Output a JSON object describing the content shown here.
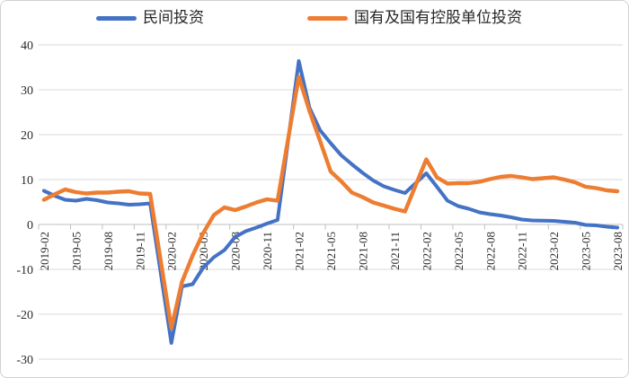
{
  "legend": [
    {
      "label": "民间投资",
      "color": "#4472C4"
    },
    {
      "label": "国有及国有控股单位投资",
      "color": "#ED7D31"
    }
  ],
  "chart_data": {
    "type": "line",
    "title": "",
    "xlabel": "",
    "ylabel": "",
    "ylim": [
      -30,
      40
    ],
    "y_ticks": [
      40,
      30,
      20,
      10,
      0,
      -10,
      -20,
      -30
    ],
    "grid": true,
    "legend_position": "top",
    "x_tick_labels": [
      "2019-02",
      "2019-05",
      "2019-08",
      "2019-11",
      "2020-02",
      "2020-05",
      "2020-08",
      "2020-11",
      "2021-02",
      "2021-05",
      "2021-08",
      "2021-11",
      "2022-02",
      "2022-05",
      "2022-08",
      "2022-11",
      "2023-02",
      "2023-05",
      "2023-08"
    ],
    "x": [
      "2019-02",
      "2019-03",
      "2019-04",
      "2019-05",
      "2019-06",
      "2019-07",
      "2019-08",
      "2019-09",
      "2019-10",
      "2019-11",
      "2019-12",
      "2020-02",
      "2020-03",
      "2020-04",
      "2020-05",
      "2020-06",
      "2020-07",
      "2020-08",
      "2020-09",
      "2020-10",
      "2020-11",
      "2020-12",
      "2021-02",
      "2021-03",
      "2021-04",
      "2021-05",
      "2021-06",
      "2021-07",
      "2021-08",
      "2021-09",
      "2021-10",
      "2021-11",
      "2021-12",
      "2022-02",
      "2022-03",
      "2022-04",
      "2022-05",
      "2022-06",
      "2022-07",
      "2022-08",
      "2022-09",
      "2022-10",
      "2022-11",
      "2022-12",
      "2023-02",
      "2023-03",
      "2023-04",
      "2023-05",
      "2023-06",
      "2023-07",
      "2023-08"
    ],
    "series": [
      {
        "name": "民间投资",
        "color": "#4472C4",
        "values": [
          7.5,
          6.4,
          5.5,
          5.3,
          5.7,
          5.4,
          4.9,
          4.7,
          4.4,
          4.5,
          4.7,
          -26.4,
          -13.8,
          -13.3,
          -9.6,
          -7.3,
          -5.7,
          -2.8,
          -1.5,
          -0.7,
          0.2,
          1.0,
          36.4,
          26.0,
          21.0,
          18.1,
          15.4,
          13.4,
          11.5,
          9.8,
          8.5,
          7.7,
          7.0,
          11.4,
          8.4,
          5.3,
          4.1,
          3.5,
          2.7,
          2.3,
          2.0,
          1.6,
          1.1,
          0.9,
          0.8,
          0.6,
          0.4,
          -0.1,
          -0.2,
          -0.5,
          -0.7
        ]
      },
      {
        "name": "国有及国有控股单位投资",
        "color": "#ED7D31",
        "values": [
          5.5,
          6.7,
          7.8,
          7.2,
          6.9,
          7.1,
          7.1,
          7.3,
          7.4,
          6.9,
          6.8,
          -23.1,
          -12.8,
          -6.9,
          -1.9,
          2.1,
          3.8,
          3.2,
          4.0,
          4.9,
          5.6,
          5.3,
          32.9,
          25.3,
          18.6,
          11.8,
          9.6,
          7.1,
          6.1,
          4.9,
          4.2,
          3.5,
          2.9,
          14.5,
          10.5,
          9.1,
          9.2,
          9.2,
          9.5,
          10.1,
          10.6,
          10.8,
          10.5,
          10.1,
          10.5,
          10.0,
          9.4,
          8.4,
          8.1,
          7.6,
          7.4
        ]
      }
    ]
  }
}
